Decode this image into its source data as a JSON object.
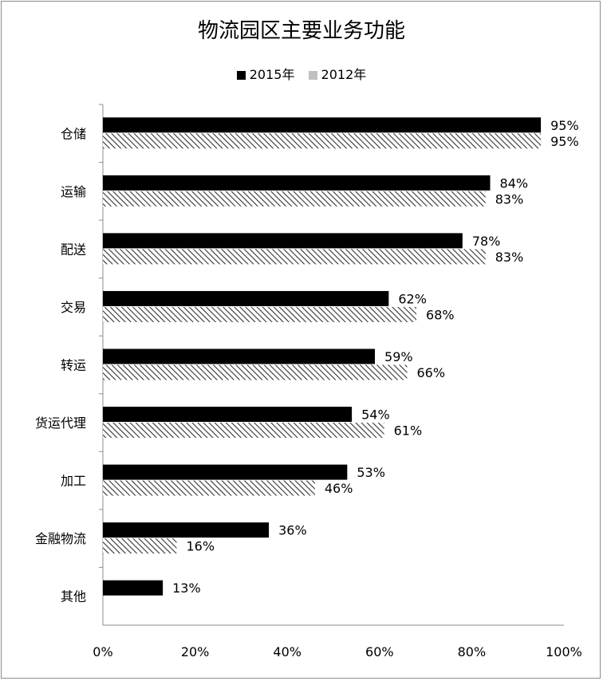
{
  "chart_data": {
    "type": "bar",
    "orientation": "horizontal",
    "title": "物流园区主要业务功能",
    "categories": [
      "仓储",
      "运输",
      "配送",
      "交易",
      "转运",
      "货运代理",
      "加工",
      "金融物流",
      "其他"
    ],
    "series": [
      {
        "name": "2015年",
        "values": [
          95,
          84,
          78,
          62,
          59,
          54,
          53,
          36,
          13
        ],
        "labels": [
          "95%",
          "84%",
          "78%",
          "62%",
          "59%",
          "54%",
          "53%",
          "36%",
          "13%"
        ],
        "color": "#000000",
        "pattern": "solid"
      },
      {
        "name": "2012年",
        "values": [
          95,
          83,
          83,
          68,
          66,
          61,
          46,
          16,
          null
        ],
        "labels": [
          "95%",
          "83%",
          "83%",
          "68%",
          "66%",
          "61%",
          "46%",
          "16%",
          null
        ],
        "color": "#c0c0c0",
        "pattern": "diagonal-hatch"
      }
    ],
    "xlim": [
      0,
      100
    ],
    "xticks": [
      "0%",
      "20%",
      "40%",
      "60%",
      "80%",
      "100%"
    ],
    "xlabel": "",
    "ylabel": "",
    "legend_position": "top",
    "grid": false
  }
}
